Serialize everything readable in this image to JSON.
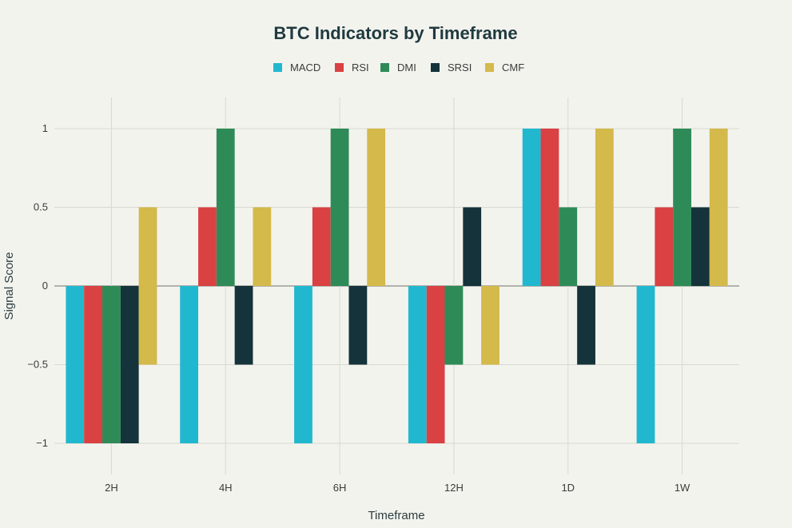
{
  "chart_data": {
    "type": "bar",
    "title": "BTC Indicators by Timeframe",
    "xlabel": "Timeframe",
    "ylabel": "Signal Score",
    "categories": [
      "2H",
      "4H",
      "6H",
      "12H",
      "1D",
      "1W"
    ],
    "ylim": [
      -1.2,
      1.2
    ],
    "yticks": [
      1,
      0.5,
      0,
      -0.5,
      -1
    ],
    "ytick_labels": [
      "1",
      "0.5",
      "0",
      "−0.5",
      "−1"
    ],
    "grid": true,
    "legend_position": "top-center",
    "series": [
      {
        "name": "MACD",
        "color": "#21b8cf",
        "values": [
          -1,
          -1,
          -1,
          -1,
          1,
          -1
        ]
      },
      {
        "name": "RSI",
        "color": "#d94143",
        "values": [
          -1,
          0.5,
          0.5,
          -1,
          1,
          0.5
        ]
      },
      {
        "name": "DMI",
        "color": "#2e8b57",
        "values": [
          -1,
          1,
          1,
          -0.5,
          0.5,
          1
        ]
      },
      {
        "name": "SRSI",
        "color": "#14333a",
        "values": [
          -1,
          -0.5,
          -0.5,
          0.5,
          -0.5,
          0.5
        ]
      },
      {
        "name": "CMF",
        "color": "#d4b94b",
        "values": [
          0.5,
          0.5,
          1,
          -0.5,
          1,
          1
        ]
      }
    ],
    "cmf_range_2h": [
      -0.5,
      0.5
    ]
  }
}
